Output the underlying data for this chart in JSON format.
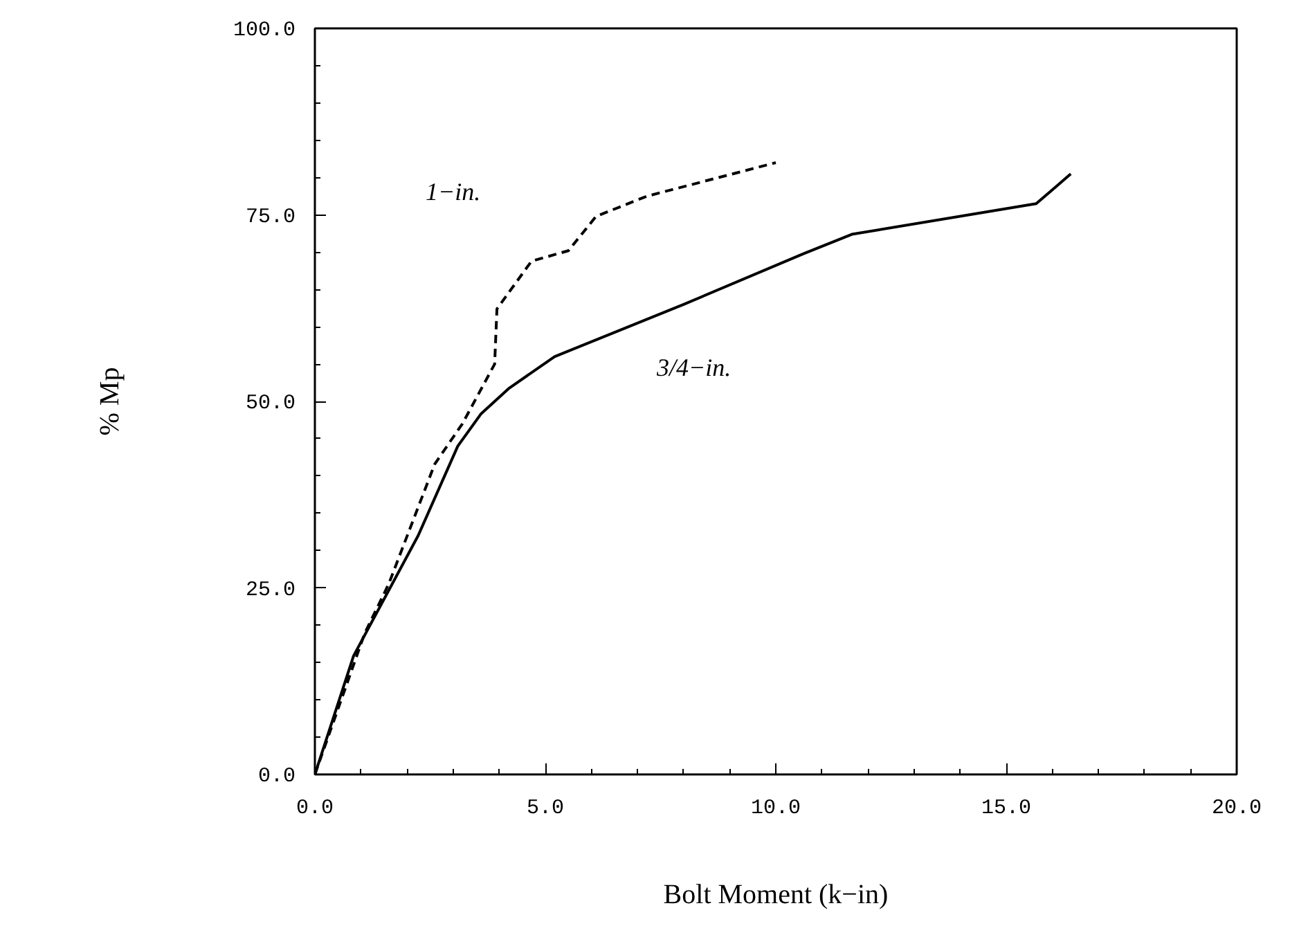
{
  "chart_data": {
    "type": "line",
    "xlabel": "Bolt Moment (k−in)",
    "ylabel": "% Mp",
    "xlim": [
      0,
      20
    ],
    "ylim": [
      0,
      100
    ],
    "xticks": [
      {
        "value": 0,
        "label": "0.0"
      },
      {
        "value": 5,
        "label": "5.0"
      },
      {
        "value": 10,
        "label": "10.0"
      },
      {
        "value": 15,
        "label": "15.0"
      },
      {
        "value": 20,
        "label": "20.0"
      }
    ],
    "yticks": [
      {
        "value": 0,
        "label": "0.0"
      },
      {
        "value": 25,
        "label": "25.0"
      },
      {
        "value": 50,
        "label": "50.0"
      },
      {
        "value": 75,
        "label": "75.0"
      },
      {
        "value": 100,
        "label": "100.0"
      }
    ],
    "grid": false,
    "marker": "none",
    "series": [
      {
        "color": "#000000",
        "line_style": "solid",
        "x": [
          0,
          0.84,
          2.24,
          3.1,
          3.6,
          4.2,
          5.2,
          8.0,
          10.6,
          11.65,
          15.65,
          16.4
        ],
        "values": [
          0,
          15.9,
          32,
          44,
          48.3,
          51.7,
          56,
          63,
          69.8,
          72.4,
          76.5,
          80.5
        ]
      },
      {
        "color": "#000000",
        "line_style": "dashed",
        "x": [
          0,
          1.08,
          1.6,
          2.6,
          3.2,
          3.9,
          3.95,
          4.7,
          5.5,
          6.1,
          7.2,
          10.0
        ],
        "values": [
          0,
          18.9,
          25.5,
          41.6,
          47,
          55,
          62.4,
          68.8,
          70.2,
          74.8,
          77.5,
          82
        ]
      }
    ],
    "annotations": [
      "1−in.",
      "3/4−in."
    ]
  }
}
